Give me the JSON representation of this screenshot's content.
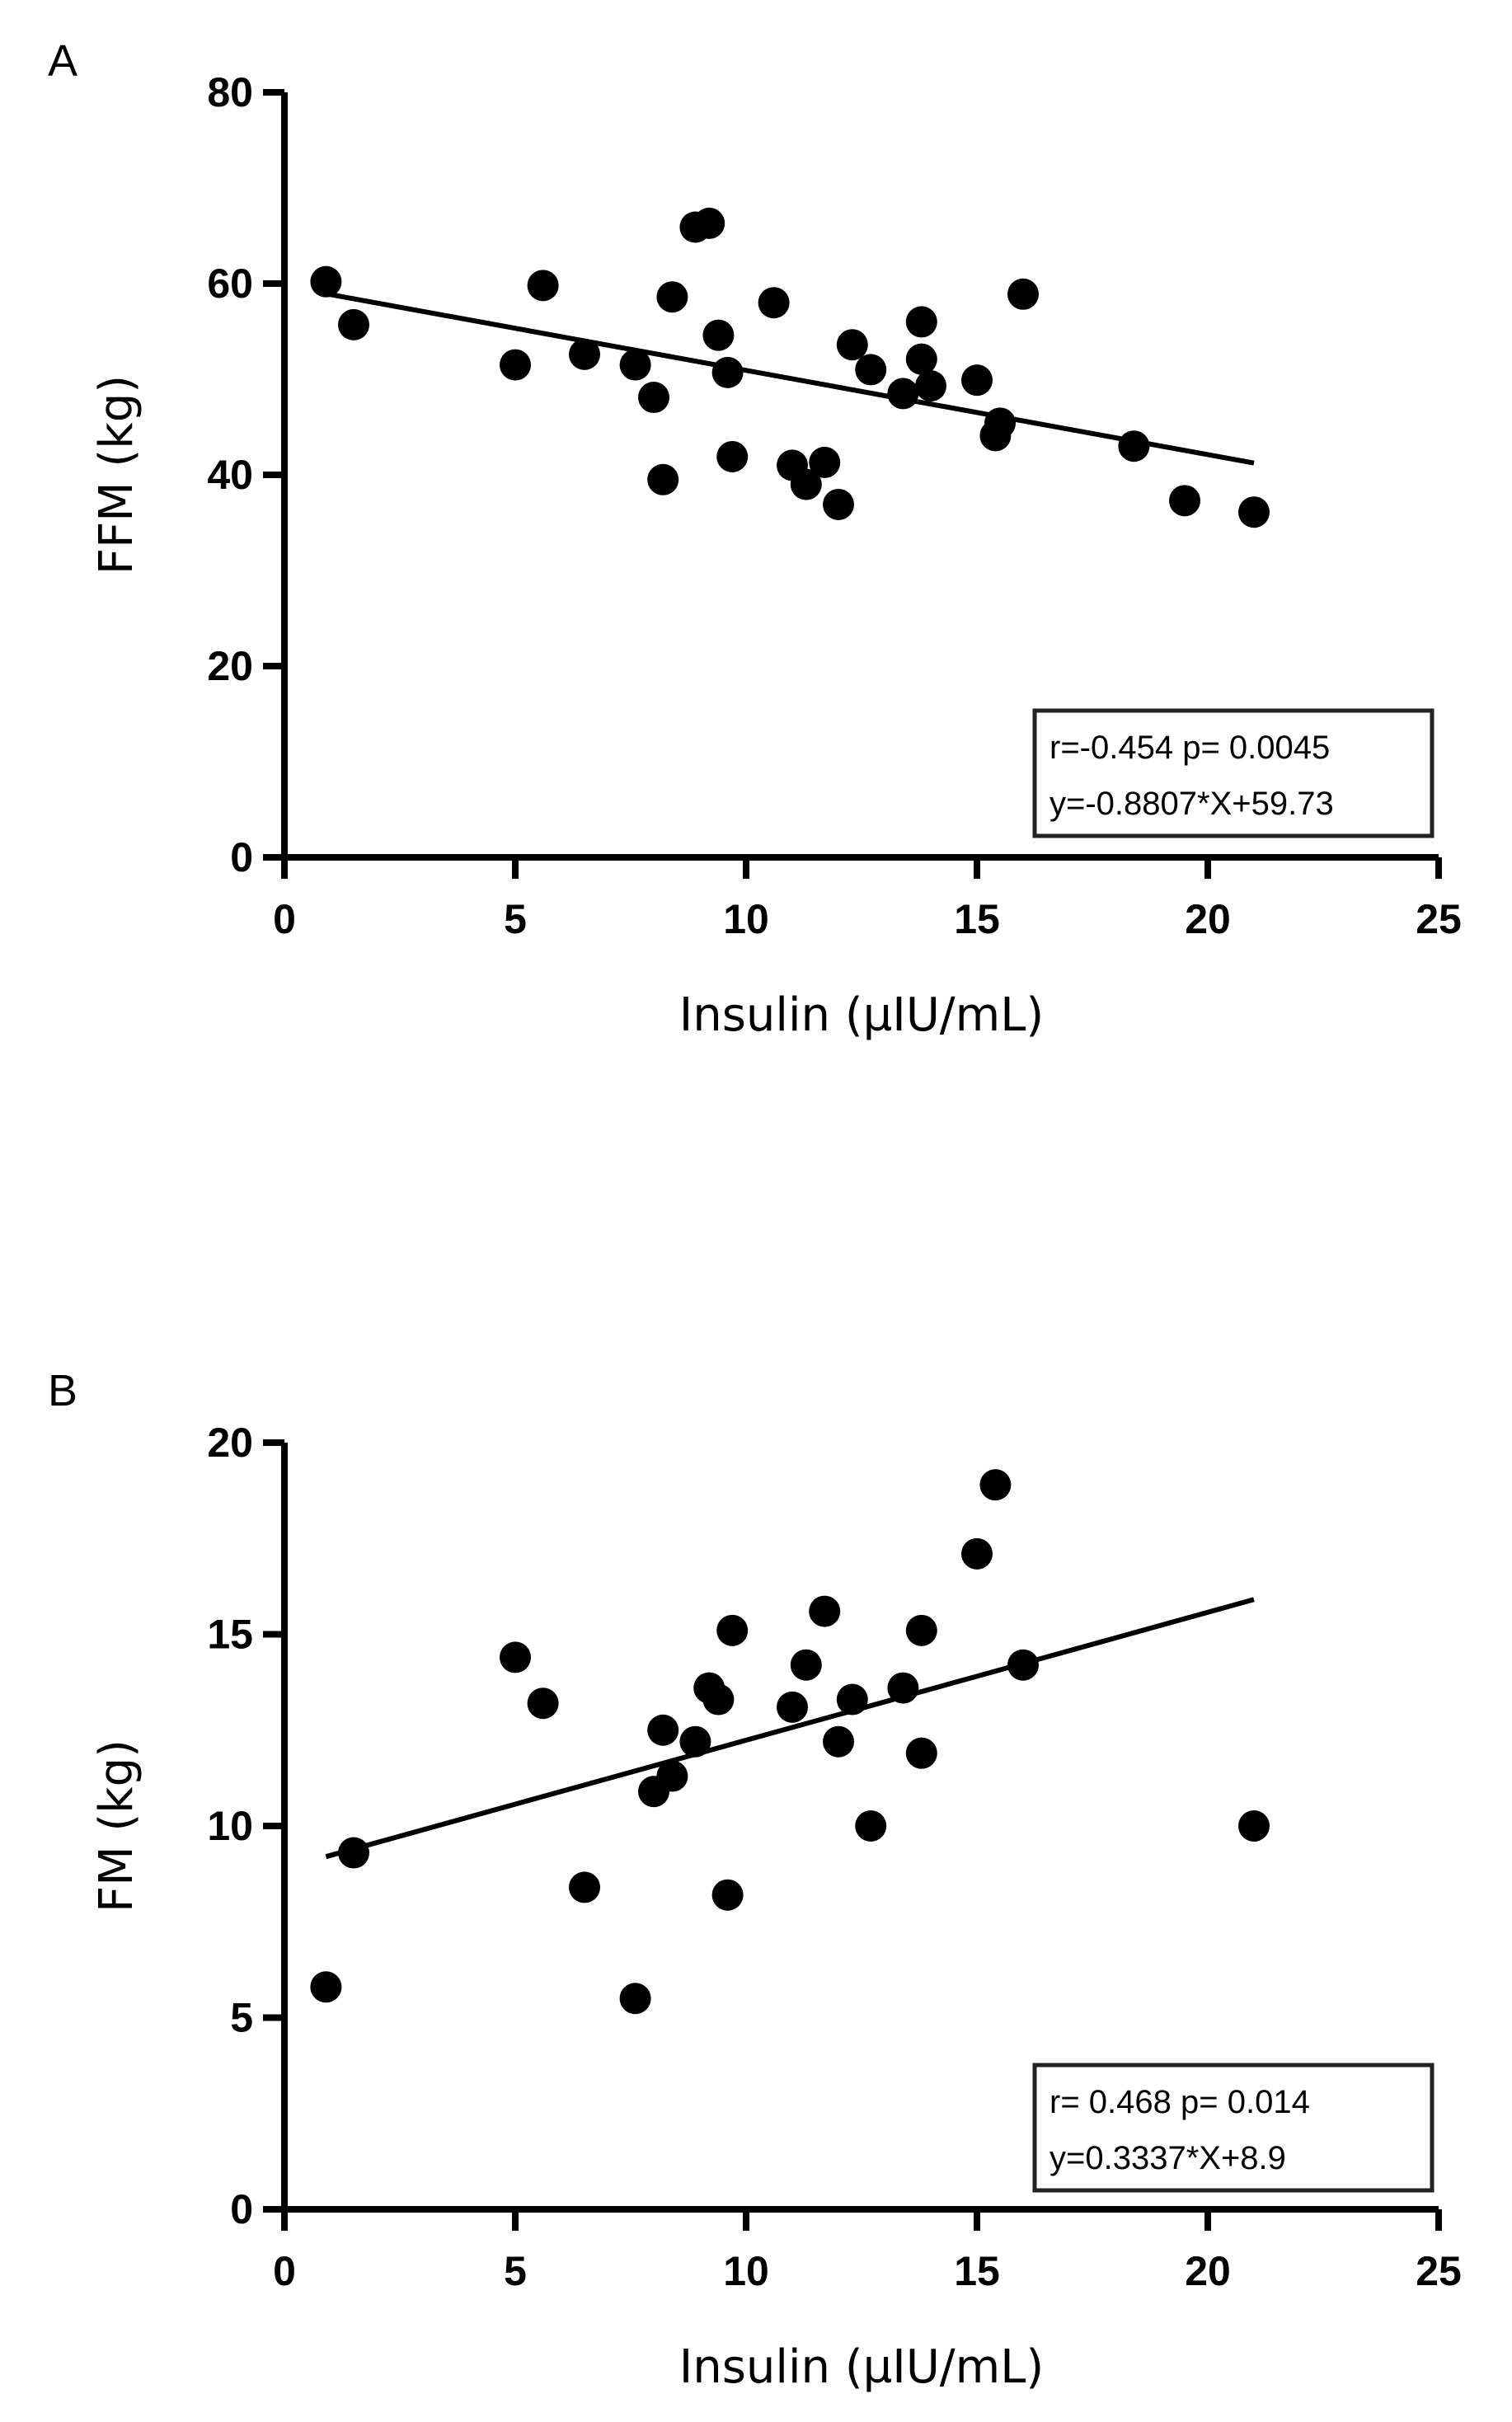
{
  "chart_data": [
    {
      "type": "scatter",
      "panel_label": "A",
      "title": "",
      "xlabel": "Insulin (µIU/mL)",
      "ylabel": "FFM (kg)",
      "xlim": [
        0,
        25
      ],
      "ylim": [
        0,
        80
      ],
      "x_ticks": [
        0,
        5,
        10,
        15,
        20,
        25
      ],
      "y_ticks": [
        0,
        20,
        40,
        60,
        80
      ],
      "x_tick_labels": [
        "0",
        "5",
        "10",
        "15",
        "20",
        "25"
      ],
      "y_tick_labels": [
        "0",
        "20",
        "40",
        "60",
        "80"
      ],
      "points": [
        {
          "x": 0.9,
          "y": 60.2
        },
        {
          "x": 1.5,
          "y": 55.7
        },
        {
          "x": 5.0,
          "y": 51.5
        },
        {
          "x": 5.6,
          "y": 59.8
        },
        {
          "x": 6.5,
          "y": 52.6
        },
        {
          "x": 7.6,
          "y": 51.5
        },
        {
          "x": 8.0,
          "y": 48.1
        },
        {
          "x": 8.2,
          "y": 39.5
        },
        {
          "x": 8.4,
          "y": 58.6
        },
        {
          "x": 8.9,
          "y": 65.9
        },
        {
          "x": 9.2,
          "y": 66.3
        },
        {
          "x": 9.4,
          "y": 54.6
        },
        {
          "x": 9.6,
          "y": 50.7
        },
        {
          "x": 9.7,
          "y": 41.9
        },
        {
          "x": 10.6,
          "y": 58.0
        },
        {
          "x": 11.0,
          "y": 41.0
        },
        {
          "x": 11.3,
          "y": 39.0
        },
        {
          "x": 11.7,
          "y": 41.3
        },
        {
          "x": 12.0,
          "y": 36.9
        },
        {
          "x": 12.3,
          "y": 53.6
        },
        {
          "x": 12.7,
          "y": 51.0
        },
        {
          "x": 13.4,
          "y": 48.5
        },
        {
          "x": 13.8,
          "y": 56.0
        },
        {
          "x": 13.8,
          "y": 52.1
        },
        {
          "x": 14.0,
          "y": 49.3
        },
        {
          "x": 15.0,
          "y": 49.9
        },
        {
          "x": 15.4,
          "y": 44.1
        },
        {
          "x": 15.5,
          "y": 45.4
        },
        {
          "x": 16.0,
          "y": 58.9
        },
        {
          "x": 18.4,
          "y": 43.0
        },
        {
          "x": 19.5,
          "y": 37.3
        },
        {
          "x": 21.0,
          "y": 36.1
        }
      ],
      "regression": {
        "slope": -0.8807,
        "intercept": 59.73,
        "x_range": [
          0.9,
          21.0
        ]
      },
      "stats_lines": [
        "r=-0.454 p= 0.0045",
        "y=-0.8807*X+59.73"
      ],
      "stats_position": "bottom-right"
    },
    {
      "type": "scatter",
      "panel_label": "B",
      "title": "",
      "xlabel": "Insulin (µIU/mL)",
      "ylabel": "FM (kg)",
      "xlim": [
        0,
        25
      ],
      "ylim": [
        0,
        20
      ],
      "x_ticks": [
        0,
        5,
        10,
        15,
        20,
        25
      ],
      "y_ticks": [
        0,
        5,
        10,
        15,
        20
      ],
      "x_tick_labels": [
        "0",
        "5",
        "10",
        "15",
        "20",
        "25"
      ],
      "y_tick_labels": [
        "0",
        "5",
        "10",
        "15",
        "20"
      ],
      "points": [
        {
          "x": 0.9,
          "y": 5.8
        },
        {
          "x": 1.5,
          "y": 9.3
        },
        {
          "x": 5.0,
          "y": 14.4
        },
        {
          "x": 5.6,
          "y": 13.2
        },
        {
          "x": 6.5,
          "y": 8.4
        },
        {
          "x": 7.6,
          "y": 5.5
        },
        {
          "x": 8.0,
          "y": 10.9
        },
        {
          "x": 8.2,
          "y": 12.5
        },
        {
          "x": 8.4,
          "y": 11.3
        },
        {
          "x": 8.9,
          "y": 12.2
        },
        {
          "x": 9.2,
          "y": 13.6
        },
        {
          "x": 9.4,
          "y": 13.3
        },
        {
          "x": 9.6,
          "y": 8.2
        },
        {
          "x": 9.7,
          "y": 15.1
        },
        {
          "x": 11.0,
          "y": 13.1
        },
        {
          "x": 11.3,
          "y": 14.2
        },
        {
          "x": 11.7,
          "y": 15.6
        },
        {
          "x": 12.0,
          "y": 12.2
        },
        {
          "x": 12.3,
          "y": 13.3
        },
        {
          "x": 12.7,
          "y": 10.0
        },
        {
          "x": 13.4,
          "y": 13.6
        },
        {
          "x": 13.8,
          "y": 15.1
        },
        {
          "x": 13.8,
          "y": 11.9
        },
        {
          "x": 15.0,
          "y": 17.1
        },
        {
          "x": 15.4,
          "y": 18.9
        },
        {
          "x": 16.0,
          "y": 14.2
        },
        {
          "x": 21.0,
          "y": 10.0
        }
      ],
      "regression": {
        "slope": 0.3337,
        "intercept": 8.9,
        "x_range": [
          0.9,
          21.0
        ]
      },
      "stats_lines": [
        "r= 0.468 p= 0.014",
        "y=0.3337*X+8.9"
      ],
      "stats_position": "bottom-right"
    }
  ]
}
